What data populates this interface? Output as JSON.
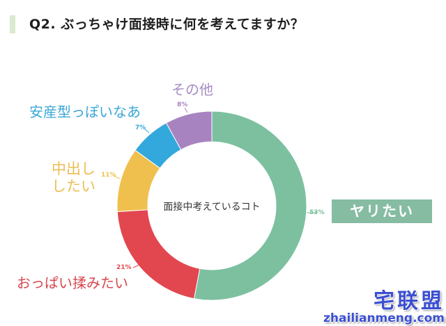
{
  "header": {
    "title": "Q2. ぶっちゃけ面接時に何を考えてますか？"
  },
  "center_label": "面接中考えているコト",
  "segments": [
    {
      "label": "ヤリたい",
      "percent_label": "53%",
      "color": "#7cc0a0"
    },
    {
      "label": "おっぱい揉みたい",
      "percent_label": "21%",
      "color": "#e2474f"
    },
    {
      "label_line1": "中出し",
      "label_line2": "したい",
      "percent_label": "11%",
      "color": "#f0c04e"
    },
    {
      "label": "安産型っぽいなあ",
      "percent_label": "7%",
      "color": "#33a8dc"
    },
    {
      "label": "その他",
      "percent_label": "8%",
      "color": "#a784c0"
    }
  ],
  "watermark": {
    "cn": "宅联盟",
    "en": "zhailianmeng.com"
  },
  "chart_data": {
    "type": "pie",
    "variant": "donut",
    "title": "Q2. ぶっちゃけ面接時に何を考えてますか？",
    "center_text": "面接中考えているコト",
    "categories": [
      "ヤリたい",
      "おっぱい揉みたい",
      "中出ししたい",
      "安産型っぽいなあ",
      "その他"
    ],
    "values": [
      53,
      21,
      11,
      7,
      8
    ],
    "colors": [
      "#7cc0a0",
      "#e2474f",
      "#f0c04e",
      "#33a8dc",
      "#a784c0"
    ],
    "start_angle": "12 o'clock, clockwise",
    "unit": "%"
  }
}
